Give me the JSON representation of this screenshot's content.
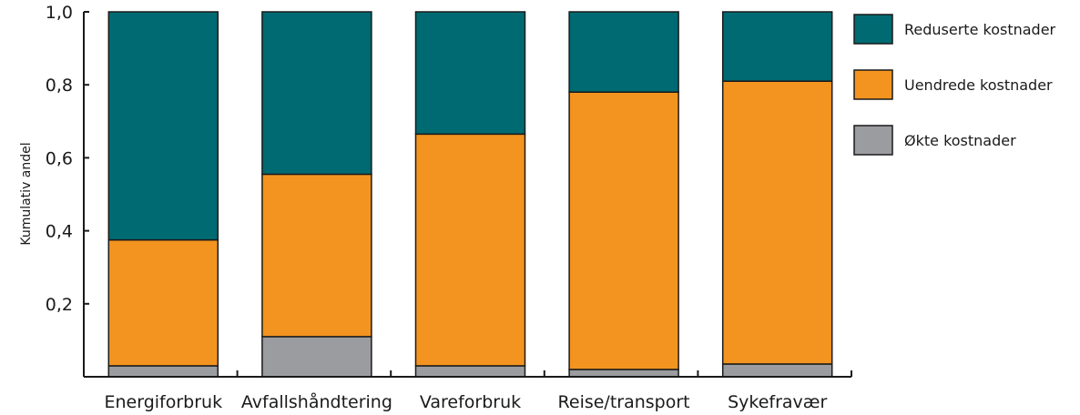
{
  "chart_data": {
    "type": "bar",
    "stacked": true,
    "categories": [
      "Energiforbruk",
      "Avfallshåndtering",
      "Vareforbruk",
      "Reise/transport",
      "Sykefravær"
    ],
    "series": [
      {
        "name": "Økte kostnader",
        "color": "#9b9ca0",
        "values": [
          0.03,
          0.11,
          0.03,
          0.02,
          0.035
        ]
      },
      {
        "name": "Uendrede kostnader",
        "color": "#f39420",
        "values": [
          0.345,
          0.445,
          0.635,
          0.76,
          0.775
        ]
      },
      {
        "name": "Reduserte kostnader",
        "color": "#006a72",
        "values": [
          0.625,
          0.445,
          0.335,
          0.22,
          0.19
        ]
      }
    ],
    "legend_order": [
      "Reduserte kostnader",
      "Uendrede kostnader",
      "Økte kostnader"
    ],
    "ylabel": "Kumulativ andel",
    "xlabel": "",
    "ylim": [
      0,
      1.0
    ],
    "yticks": [
      0.2,
      0.4,
      0.6,
      0.8,
      1.0
    ],
    "ytick_labels": [
      "0,2",
      "0,4",
      "0,6",
      "0,8",
      "1,0"
    ],
    "grid": false,
    "legend_position": "right"
  }
}
